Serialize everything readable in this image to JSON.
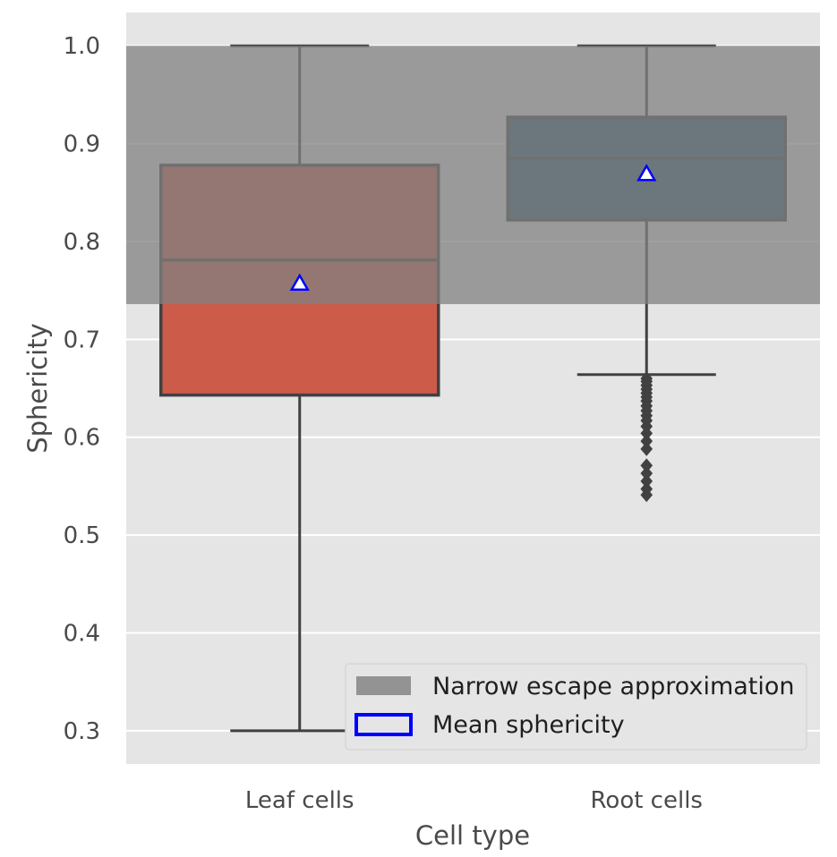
{
  "chart_data": {
    "type": "box",
    "xlabel": "Cell type",
    "ylabel": "Sphericity",
    "categories": [
      "Leaf cells",
      "Root cells"
    ],
    "ylim": [
      0.266,
      1.034
    ],
    "yticks": [
      0.3,
      0.4,
      0.5,
      0.6,
      0.7,
      0.8,
      0.9,
      1.0
    ],
    "ytick_labels": [
      "0.3",
      "0.4",
      "0.5",
      "0.6",
      "0.7",
      "0.8",
      "0.9",
      "1.0"
    ],
    "grid": true,
    "background_color": "#e5e5e5",
    "shaded_region": {
      "label": "Narrow escape approximation",
      "y_from": 0.736,
      "y_to": 1.0,
      "color": "#808080",
      "opacity": 0.75
    },
    "boxes": [
      {
        "category": "Leaf cells",
        "color": "#cd5b4a",
        "whisker_low": 0.3,
        "q1": 0.643,
        "median": 0.781,
        "q3": 0.878,
        "whisker_high": 1.0,
        "mean": 0.757,
        "outliers": []
      },
      {
        "category": "Root cells",
        "color": "#335c75",
        "whisker_low": 0.664,
        "q1": 0.822,
        "median": 0.885,
        "q3": 0.927,
        "whisker_high": 1.0,
        "mean": 0.869,
        "outliers": [
          0.541,
          0.547,
          0.555,
          0.563,
          0.571,
          0.588,
          0.596,
          0.604,
          0.611,
          0.617,
          0.622,
          0.627,
          0.632,
          0.637,
          0.641,
          0.645,
          0.649,
          0.653,
          0.657,
          0.66
        ]
      }
    ],
    "mean_marker": {
      "label": "Mean sphericity",
      "shape": "triangle",
      "fill": "#ffffff",
      "edge_color": "#0000ff"
    },
    "legend": {
      "position": "lower-right",
      "entries": [
        {
          "label": "Narrow escape approximation",
          "kind": "patch",
          "color": "#939393"
        },
        {
          "label": "Mean sphericity",
          "kind": "outline",
          "color": "#0000ff"
        }
      ]
    }
  }
}
